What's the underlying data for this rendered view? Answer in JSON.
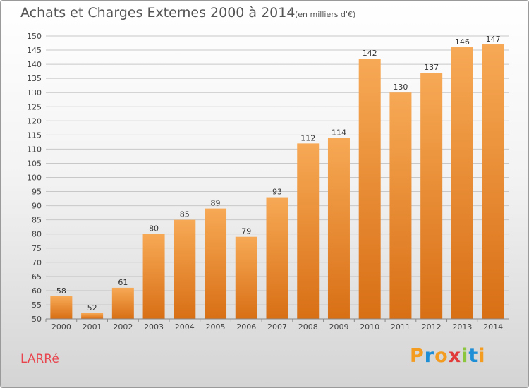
{
  "header": {
    "title": "Achats et Charges Externes 2000 à 2014",
    "subtitle": "(en milliers d'€)"
  },
  "footer": {
    "city": "LARRé",
    "logo": {
      "letters": [
        "P",
        "r",
        "o",
        "x",
        "i",
        "t",
        "i"
      ],
      "colors": [
        "#f39c1f",
        "#1e8fd6",
        "#f39c1f",
        "#e23b3b",
        "#8cc63f",
        "#1e8fd6",
        "#f39c1f"
      ]
    }
  },
  "colors": {
    "bar_light": "#f7a955",
    "bar_dark": "#d86f15",
    "grid": "#c8c8c8"
  },
  "chart_data": {
    "type": "bar",
    "title": "Achats et Charges Externes 2000 à 2014",
    "subtitle": "(en milliers d'€)",
    "xlabel": "",
    "ylabel": "",
    "categories": [
      "2000",
      "2001",
      "2002",
      "2003",
      "2004",
      "2005",
      "2006",
      "2007",
      "2008",
      "2009",
      "2010",
      "2011",
      "2012",
      "2013",
      "2014"
    ],
    "values": [
      58,
      52,
      61,
      80,
      85,
      89,
      79,
      93,
      112,
      114,
      142,
      130,
      137,
      146,
      147
    ],
    "ylim": [
      50,
      150
    ],
    "yticks": [
      50,
      55,
      60,
      65,
      70,
      75,
      80,
      85,
      90,
      95,
      100,
      105,
      110,
      115,
      120,
      125,
      130,
      135,
      140,
      145,
      150
    ],
    "grid": true,
    "data_labels": true
  }
}
